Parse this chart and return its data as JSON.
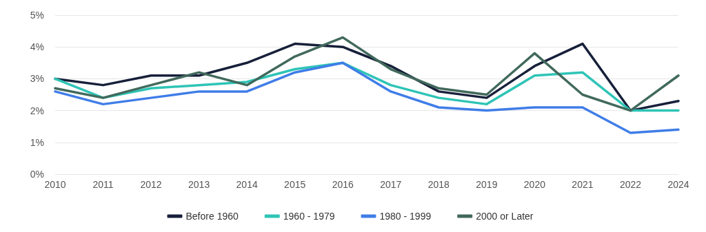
{
  "chart_data": {
    "type": "line",
    "categories": [
      "2010",
      "2011",
      "2012",
      "2013",
      "2014",
      "2015",
      "2016",
      "2017",
      "2018",
      "2019",
      "2020",
      "2021",
      "2022",
      "2024"
    ],
    "series": [
      {
        "name": "Before 1960",
        "color": "#17203a",
        "values": [
          3.0,
          2.8,
          3.1,
          3.1,
          3.5,
          4.1,
          4.0,
          3.4,
          2.6,
          2.4,
          3.4,
          4.1,
          2.0,
          2.3
        ]
      },
      {
        "name": "1960 - 1979",
        "color": "#2ec4b6",
        "values": [
          3.0,
          2.4,
          2.7,
          2.8,
          2.9,
          3.3,
          3.5,
          2.8,
          2.4,
          2.2,
          3.1,
          3.2,
          2.0,
          2.0
        ]
      },
      {
        "name": "1980 - 1999",
        "color": "#3f7de8",
        "values": [
          2.6,
          2.2,
          2.4,
          2.6,
          2.6,
          3.2,
          3.5,
          2.6,
          2.1,
          2.0,
          2.1,
          2.1,
          1.3,
          1.4
        ]
      },
      {
        "name": "2000 or Later",
        "color": "#41695c",
        "values": [
          2.7,
          2.4,
          2.8,
          3.2,
          2.8,
          3.7,
          4.3,
          3.3,
          2.7,
          2.5,
          3.8,
          2.5,
          2.0,
          3.1
        ]
      }
    ],
    "ylim": [
      0,
      5
    ],
    "yticks": [
      {
        "value": 0,
        "label": "0%"
      },
      {
        "value": 1,
        "label": "1%"
      },
      {
        "value": 2,
        "label": "2%"
      },
      {
        "value": 3,
        "label": "3%"
      },
      {
        "value": 4,
        "label": "4%"
      },
      {
        "value": 5,
        "label": "5%"
      }
    ],
    "grid": "y",
    "legend": "bottom",
    "marker": "none",
    "line_style": "solid"
  }
}
